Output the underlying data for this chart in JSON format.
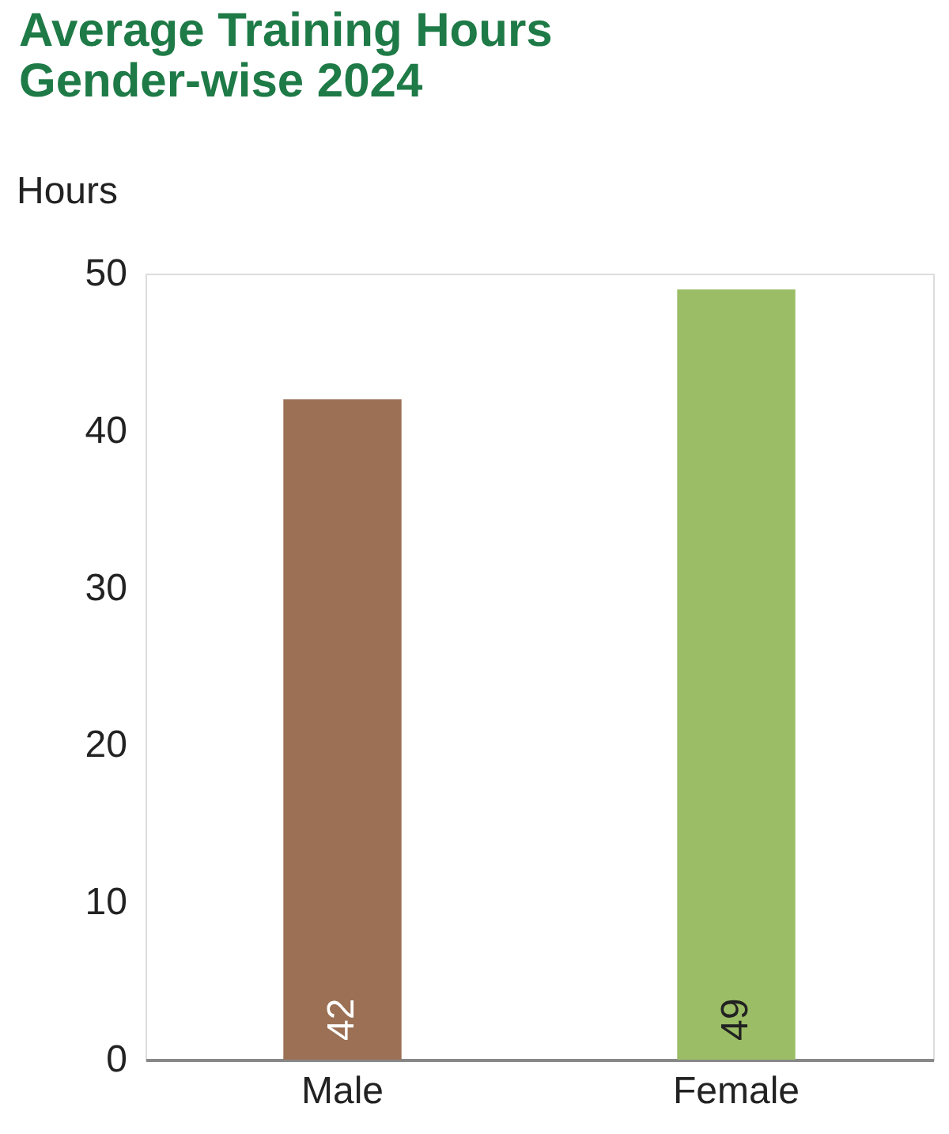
{
  "chart_data": {
    "type": "bar",
    "title": "Average Training Hours\nGender-wise 2024",
    "ylabel": "Hours",
    "categories": [
      "Male",
      "Female"
    ],
    "values": [
      42,
      49
    ],
    "colors": [
      "#9b7055",
      "#9bbd65"
    ],
    "ylim": [
      0,
      50
    ],
    "yticks": [
      0,
      10,
      20,
      30,
      40,
      50
    ],
    "grid": false,
    "data_labels": true
  }
}
